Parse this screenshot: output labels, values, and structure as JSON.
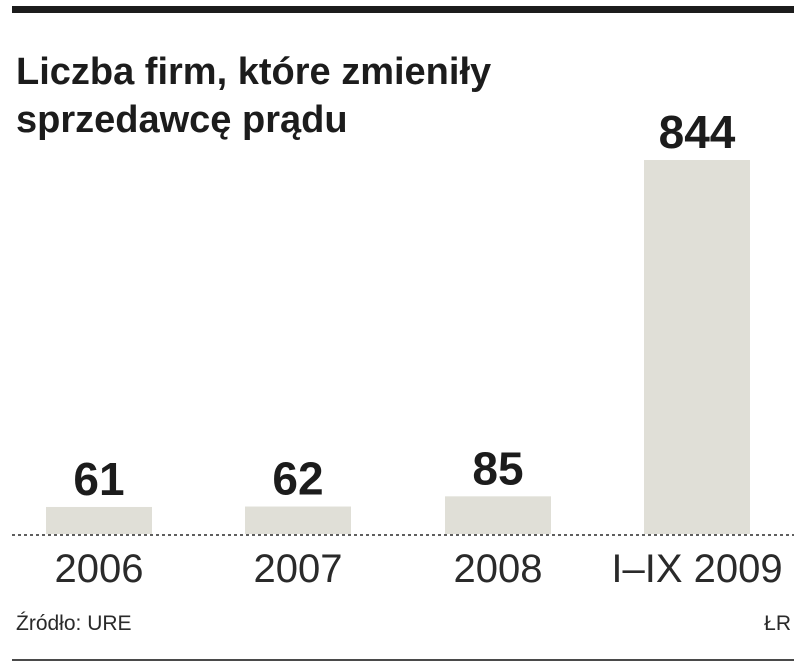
{
  "chart_data": {
    "type": "bar",
    "title": "Liczba firm, które zmieniły sprzedawcę prądu",
    "categories": [
      "2006",
      "2007",
      "2008",
      "I–IX 2009"
    ],
    "values": [
      61,
      62,
      85,
      844
    ],
    "value_labels": [
      "61",
      "62",
      "85",
      "844"
    ],
    "xlabel": "",
    "ylabel": "",
    "ylim": [
      0,
      844
    ],
    "grid": false,
    "legend": "none",
    "bar_color": "#e0dfd7",
    "baseline_style": "dashed"
  },
  "footer": {
    "source": "Źródło: URE",
    "credit": "ŁR"
  },
  "colors": {
    "text": "#1c1c1c",
    "rule": "#1c1c1c",
    "bar": "#e0dfd7"
  }
}
